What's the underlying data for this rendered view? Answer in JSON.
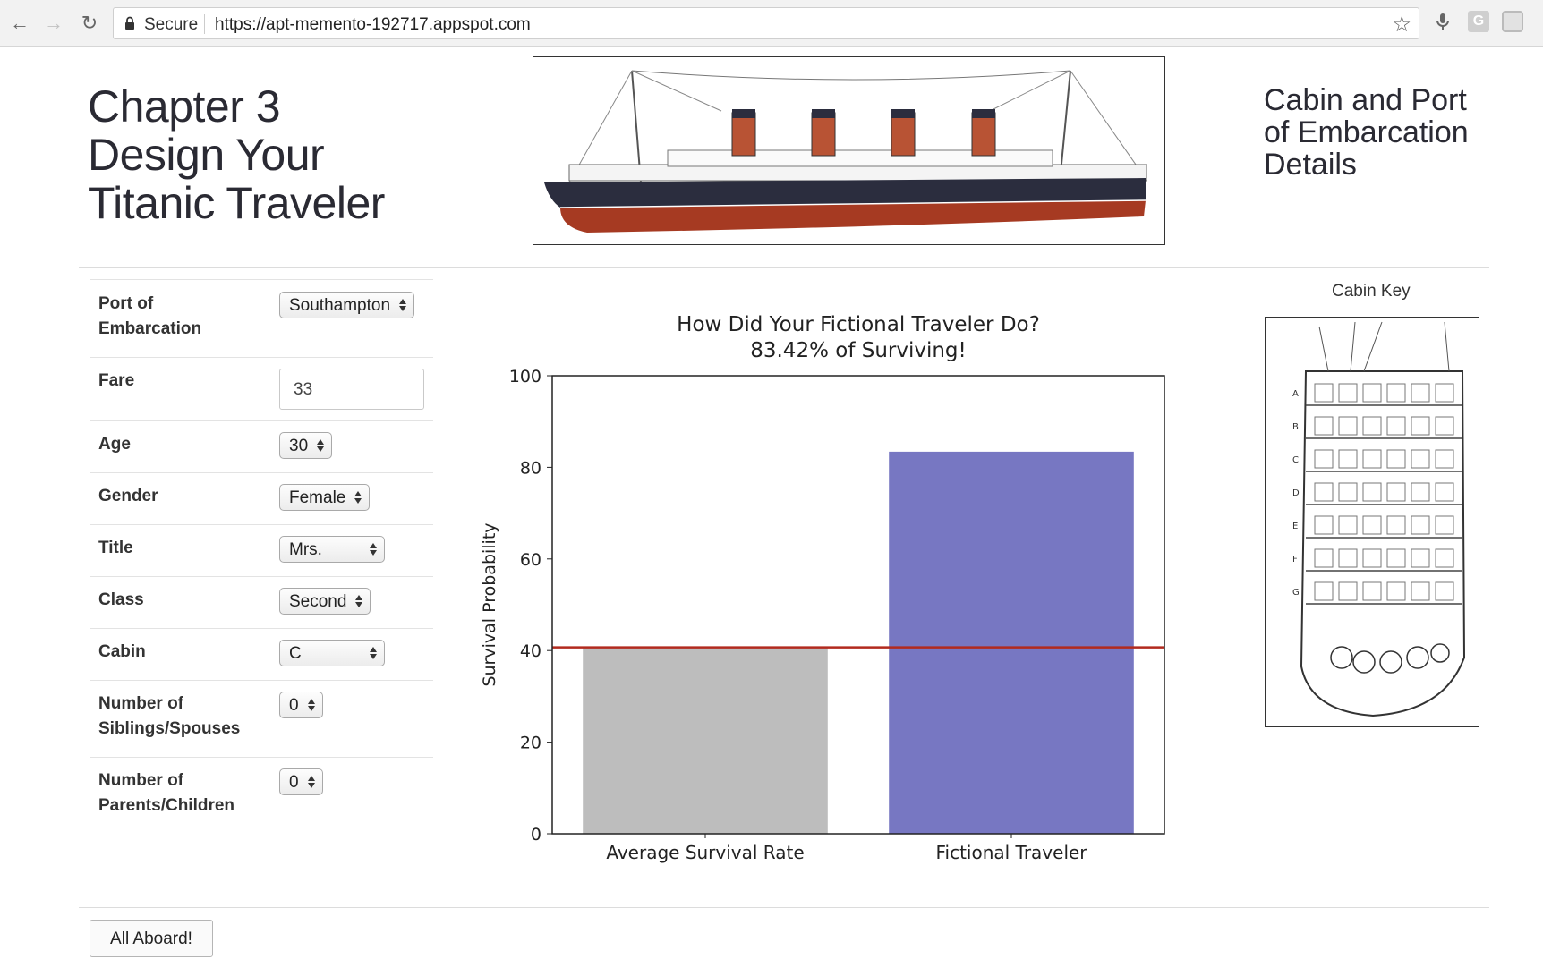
{
  "browser": {
    "secure_label": "Secure",
    "url": "https://apt-memento-192717.appspot.com",
    "ext_g_label": "G"
  },
  "header": {
    "title_line1": "Chapter 3",
    "title_line2": "Design Your",
    "title_line3": "Titanic Traveler",
    "right_line1": "Cabin and Port",
    "right_line2": "of Embarcation",
    "right_line3": "Details"
  },
  "form": {
    "port_label_1": "Port of",
    "port_label_2": "Embarcation",
    "port_value": "Southampton",
    "fare_label": "Fare",
    "fare_value": "33",
    "age_label": "Age",
    "age_value": "30",
    "gender_label": "Gender",
    "gender_value": "Female",
    "title_label": "Title",
    "title_value": "Mrs.",
    "class_label": "Class",
    "class_value": "Second",
    "cabin_label": "Cabin",
    "cabin_value": "C",
    "sib_label_1": "Number of",
    "sib_label_2": "Siblings/Spouses",
    "sib_value": "0",
    "par_label_1": "Number of",
    "par_label_2": "Parents/Children",
    "par_value": "0"
  },
  "cabin_key": {
    "label": "Cabin Key",
    "decks": [
      "A",
      "B",
      "C",
      "D",
      "E",
      "F",
      "G"
    ]
  },
  "actions": {
    "all_aboard": "All Aboard!"
  },
  "colors": {
    "avg_bar": "#bdbdbd",
    "traveler_bar": "#7777c2",
    "baseline": "#b22a1e",
    "hull_top": "#2b2d3e",
    "hull_bottom": "#a63a22"
  },
  "chart_data": {
    "type": "bar",
    "title": "How Did Your Fictional Traveler Do?",
    "subtitle": "83.42% of Surviving!",
    "categories": [
      "Average Survival Rate",
      "Fictional Traveler"
    ],
    "values": [
      40.7,
      83.42
    ],
    "reference_line": 40.7,
    "xlabel": "",
    "ylabel": "Survival Probability",
    "ylim": [
      0,
      100
    ],
    "yticks": [
      0,
      20,
      40,
      60,
      80,
      100
    ],
    "grid": false
  }
}
